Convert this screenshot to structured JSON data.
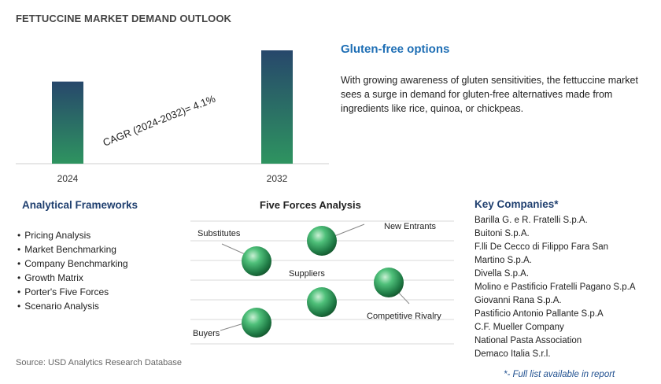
{
  "title": "FETTUCCINE MARKET DEMAND OUTLOOK",
  "chart_data": {
    "type": "bar",
    "categories": [
      "2024",
      "2032"
    ],
    "values": [
      1.0,
      1.38
    ],
    "annotation": "CAGR (2024-2032)=   4.1%",
    "colors": {
      "bar_top": "#27476b",
      "bar_bottom": "#2e9460"
    }
  },
  "highlight": {
    "title": "Gluten-free options",
    "text": "With growing awareness of gluten sensitivities, the fettuccine market sees a surge in demand for gluten-free alternatives made from ingredients like rice, quinoa, or chickpeas."
  },
  "analytical_frameworks": {
    "title": "Analytical Frameworks",
    "items": [
      "Pricing Analysis",
      "Market Benchmarking",
      "Company Benchmarking",
      "Growth Matrix",
      "Porter's Five Forces",
      "Scenario Analysis"
    ]
  },
  "five_forces": {
    "title": "Five Forces Analysis",
    "labels": {
      "substitutes": "Substitutes",
      "new_entrants": "New Entrants",
      "suppliers": "Suppliers",
      "competitive_rivalry": "Competitive Rivalry",
      "buyers": "Buyers"
    }
  },
  "key_companies": {
    "title": "Key Companies*",
    "items": [
      "Barilla G. e R. Fratelli S.p.A.",
      "Buitoni S.p.A.",
      "F.lli De Cecco di Filippo Fara San",
      "Martino S.p.A.",
      "Divella S.p.A.",
      "Molino e Pastificio Fratelli Pagano S.p.A",
      "Giovanni Rana S.p.A.",
      "Pastificio Antonio Pallante S.p.A",
      "C.F. Mueller Company",
      "National Pasta Association",
      "Demaco Italia S.r.l."
    ],
    "note": "*- Full list available in report"
  },
  "source": "Source: USD Analytics Research Database"
}
